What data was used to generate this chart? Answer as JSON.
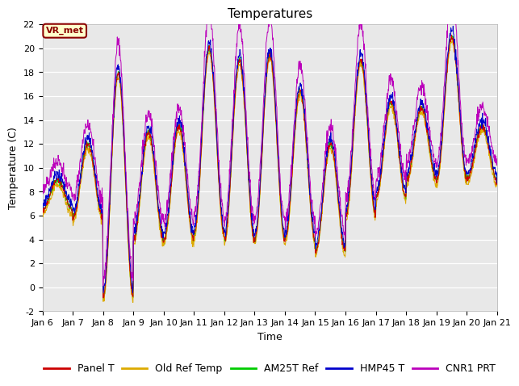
{
  "title": "Temperatures",
  "xlabel": "Time",
  "ylabel": "Temperature (C)",
  "ylim": [
    -2,
    22
  ],
  "yticks": [
    -2,
    0,
    2,
    4,
    6,
    8,
    10,
    12,
    14,
    16,
    18,
    20,
    22
  ],
  "date_labels": [
    "Jan 6",
    "Jan 7",
    "Jan 8",
    "Jan 9",
    "Jan 10",
    "Jan 11",
    "Jan 12",
    "Jan 13",
    "Jan 14",
    "Jan 15",
    "Jan 16",
    "Jan 17",
    "Jan 18",
    "Jan 19",
    "Jan 20",
    "Jan 21"
  ],
  "series_colors": {
    "Panel T": "#cc0000",
    "Old Ref Temp": "#ddaa00",
    "AM25T Ref": "#00cc00",
    "HMP45 T": "#0000cc",
    "CNR1 PRT": "#bb00bb"
  },
  "annotation_text": "VR_met",
  "annotation_fg": "#8B0000",
  "annotation_bg": "#ffffcc",
  "plot_bg_color": "#e8e8e8",
  "fig_bg_color": "#ffffff",
  "title_fontsize": 11,
  "axis_label_fontsize": 9,
  "tick_fontsize": 8,
  "legend_fontsize": 9
}
